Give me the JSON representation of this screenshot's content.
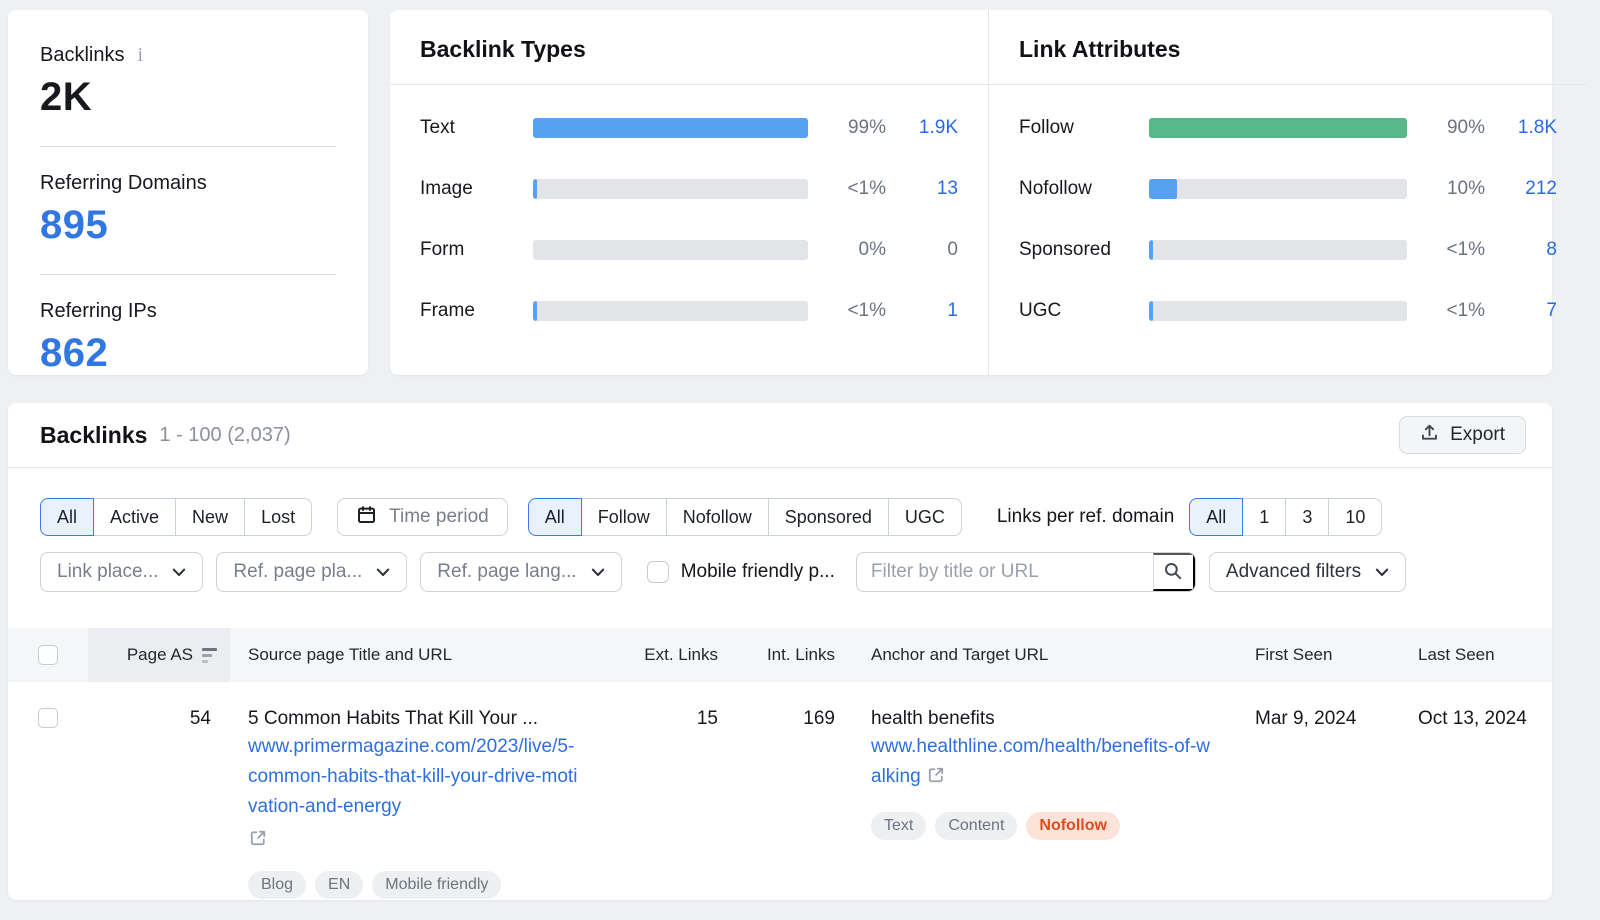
{
  "colors": {
    "bar_blue": "#57a1f1",
    "bar_green": "#57b98a",
    "bar_track": "#e2e4e8",
    "link_blue": "#2a6adf",
    "value_blue": "#3077e3",
    "nofollow_text": "#e04b20",
    "nofollow_bg": "#fbe3da"
  },
  "summary": {
    "backlinks": {
      "label": "Backlinks",
      "value": "2K",
      "info_icon": "info-icon"
    },
    "referring_domains": {
      "label": "Referring Domains",
      "value": "895"
    },
    "referring_ips": {
      "label": "Referring IPs",
      "value": "862"
    }
  },
  "chart_data": [
    {
      "type": "bar",
      "title": "Backlink Types",
      "categories": [
        "Text",
        "Image",
        "Form",
        "Frame"
      ],
      "values": [
        1900,
        13,
        0,
        1
      ],
      "percent_labels": [
        "99%",
        "<1%",
        "0%",
        "<1%"
      ],
      "count_labels": [
        "1.9K",
        "13",
        "0",
        "1"
      ],
      "fill_pct": [
        100,
        1.5,
        0,
        1.5
      ],
      "bar_colors": [
        "blue",
        "blue",
        "blue",
        "blue"
      ],
      "count_is_link": [
        true,
        true,
        false,
        true
      ],
      "legend_position": "none",
      "grid": false
    },
    {
      "type": "bar",
      "title": "Link Attributes",
      "categories": [
        "Follow",
        "Nofollow",
        "Sponsored",
        "UGC"
      ],
      "values": [
        1800,
        212,
        8,
        7
      ],
      "percent_labels": [
        "90%",
        "10%",
        "<1%",
        "<1%"
      ],
      "count_labels": [
        "1.8K",
        "212",
        "8",
        "7"
      ],
      "fill_pct": [
        100,
        11,
        1.5,
        1.5
      ],
      "bar_colors": [
        "green",
        "blue",
        "blue",
        "blue"
      ],
      "count_is_link": [
        true,
        true,
        true,
        true
      ],
      "legend_position": "none",
      "grid": false
    }
  ],
  "section": {
    "title": "Backlinks",
    "range": "1 - 100 (2,037)",
    "export_label": "Export"
  },
  "filters": {
    "status_segments": {
      "options": [
        "All",
        "Active",
        "New",
        "Lost"
      ],
      "selected": "All"
    },
    "time_period": {
      "label": "Time period"
    },
    "attr_segments": {
      "options": [
        "All",
        "Follow",
        "Nofollow",
        "Sponsored",
        "UGC"
      ],
      "selected": "All"
    },
    "links_per_domain": {
      "label": "Links per ref. domain",
      "options": [
        "All",
        "1",
        "3",
        "10"
      ],
      "selected": "All"
    },
    "dropdowns": [
      {
        "id": "link-placement",
        "label": "Link place..."
      },
      {
        "id": "ref-page-platform",
        "label": "Ref. page pla..."
      },
      {
        "id": "ref-page-language",
        "label": "Ref. page lang..."
      }
    ],
    "mobile_friendly": {
      "label": "Mobile friendly p...",
      "checked": false
    },
    "search": {
      "placeholder": "Filter by title or URL"
    },
    "advanced": {
      "label": "Advanced filters"
    }
  },
  "table": {
    "columns": {
      "page_as": "Page AS",
      "source": "Source page Title and URL",
      "ext_links": "Ext. Links",
      "int_links": "Int. Links",
      "anchor": "Anchor and Target URL",
      "first_seen": "First Seen",
      "last_seen": "Last Seen"
    },
    "rows": [
      {
        "page_as": "54",
        "source_title": "5 Common Habits That Kill Your ...",
        "source_url": "www.primermagazine.com/2023/live/5-common-habits-that-kill-your-drive-motivation-and-energy",
        "ext_links": "15",
        "int_links": "169",
        "anchor": "health benefits",
        "target_url": "www.healthline.com/health/benefits-of-walking",
        "source_badges": [
          "Blog",
          "EN",
          "Mobile friendly"
        ],
        "link_badges": [
          {
            "label": "Text",
            "style": "gray"
          },
          {
            "label": "Content",
            "style": "gray"
          },
          {
            "label": "Nofollow",
            "style": "orange"
          }
        ],
        "first_seen": "Mar 9, 2024",
        "last_seen": "Oct 13, 2024"
      }
    ]
  }
}
